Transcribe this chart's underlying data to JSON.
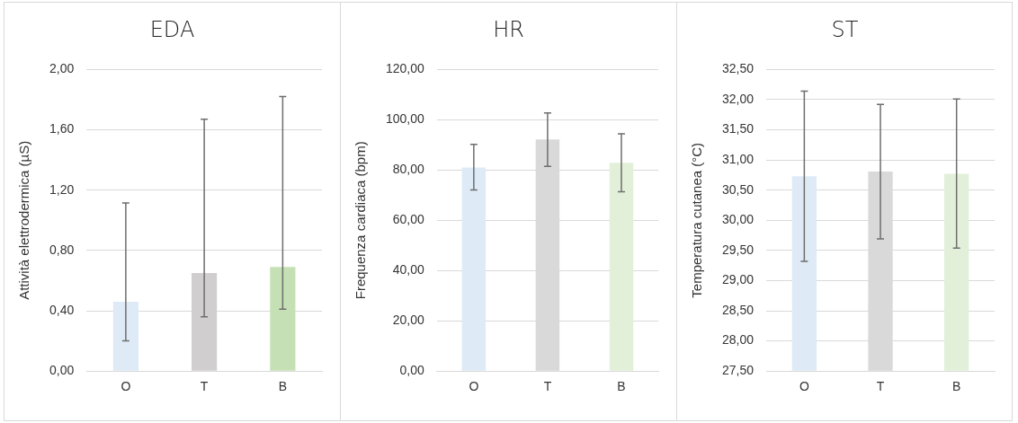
{
  "chart_data": [
    {
      "type": "bar",
      "title": "EDA",
      "ylabel": "Attività elettrodermica (µS)",
      "categories": [
        "O",
        "T",
        "B"
      ],
      "values": [
        0.46,
        0.65,
        0.69
      ],
      "colors": [
        "#deebf7",
        "#d0cece",
        "#c5e0b4"
      ],
      "errors": [
        [
          0.2,
          1.115
        ],
        [
          0.36,
          1.67
        ],
        [
          0.41,
          1.82
        ]
      ],
      "ylim": [
        0,
        2
      ],
      "yticks": [
        {
          "value": 0,
          "label": "0,00"
        },
        {
          "value": 0.4,
          "label": "0,40"
        },
        {
          "value": 0.8,
          "label": "0,80"
        },
        {
          "value": 1.2,
          "label": "1,20"
        },
        {
          "value": 1.6,
          "label": "1,60"
        },
        {
          "value": 2,
          "label": "2,00"
        }
      ],
      "grid": "y",
      "legend": false
    },
    {
      "type": "bar",
      "title": "HR",
      "ylabel": "Frequenza cardiaca (bpm)",
      "categories": [
        "O",
        "T",
        "B"
      ],
      "values": [
        81,
        92.2,
        82.9
      ],
      "colors": [
        "#deebf7",
        "#d9d9d9",
        "#e2f0d9"
      ],
      "errors": [
        [
          72.1,
          90.2
        ],
        [
          81.5,
          102.7
        ],
        [
          71.4,
          94.4
        ]
      ],
      "ylim": [
        0,
        120
      ],
      "yticks": [
        {
          "value": 0,
          "label": "0,00"
        },
        {
          "value": 20,
          "label": "20,00"
        },
        {
          "value": 40,
          "label": "40,00"
        },
        {
          "value": 60,
          "label": "60,00"
        },
        {
          "value": 80,
          "label": "80,00"
        },
        {
          "value": 100,
          "label": "100,00"
        },
        {
          "value": 120,
          "label": "120,00"
        }
      ],
      "grid": "y",
      "legend": false
    },
    {
      "type": "bar",
      "title": "ST",
      "ylabel": "Temperatura cutanea (°C)",
      "categories": [
        "O",
        "T",
        "B"
      ],
      "values": [
        30.73,
        30.81,
        30.77
      ],
      "colors": [
        "#deebf7",
        "#d9d9d9",
        "#e2f0d9"
      ],
      "errors": [
        [
          29.32,
          32.14
        ],
        [
          29.69,
          31.92
        ],
        [
          29.54,
          32.01
        ]
      ],
      "ylim": [
        27.5,
        32.5
      ],
      "yticks": [
        {
          "value": 27.5,
          "label": "27,50"
        },
        {
          "value": 28,
          "label": "28,00"
        },
        {
          "value": 28.5,
          "label": "28,50"
        },
        {
          "value": 29,
          "label": "29,00"
        },
        {
          "value": 29.5,
          "label": "29,50"
        },
        {
          "value": 30,
          "label": "30,00"
        },
        {
          "value": 30.5,
          "label": "30,50"
        },
        {
          "value": 31,
          "label": "31,00"
        },
        {
          "value": 31.5,
          "label": "31,50"
        },
        {
          "value": 32,
          "label": "32,00"
        },
        {
          "value": 32.5,
          "label": "32,50"
        }
      ],
      "grid": "y",
      "legend": false
    }
  ]
}
